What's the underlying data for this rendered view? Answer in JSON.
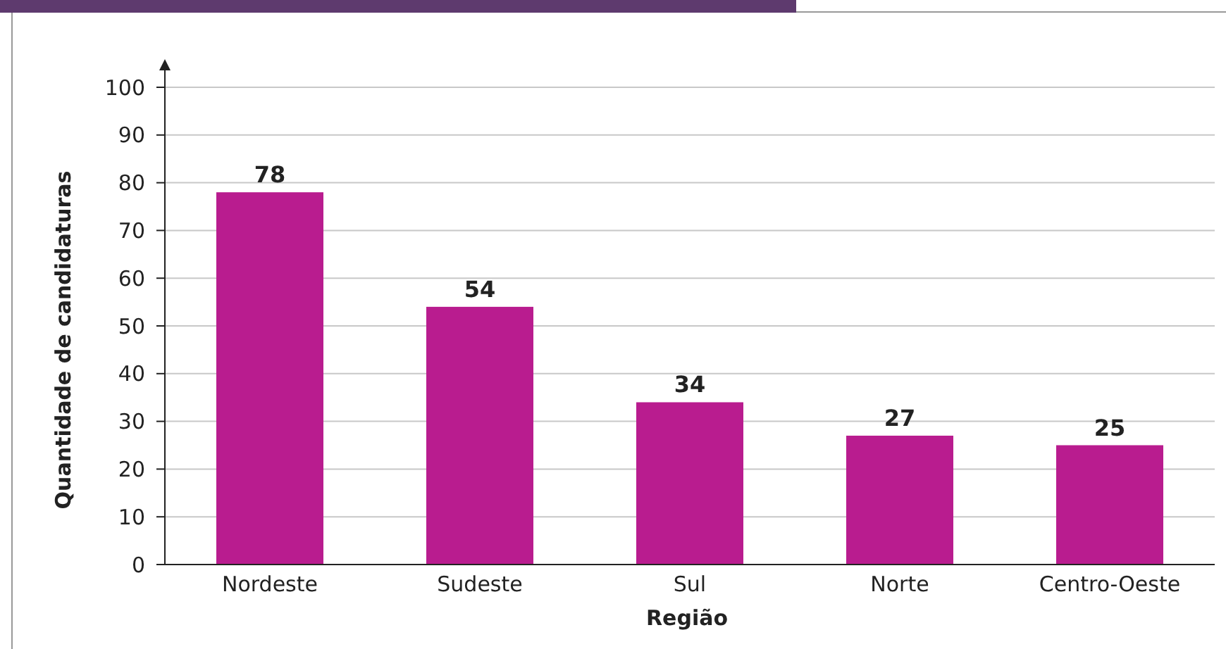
{
  "chart_data": {
    "type": "bar",
    "xlabel": "Região",
    "ylabel": "Quantidade de candidaturas",
    "categories": [
      "Nordeste",
      "Sudeste",
      "Sul",
      "Norte",
      "Centro-Oeste"
    ],
    "values": [
      78,
      54,
      34,
      27,
      25
    ],
    "color": "#b91c8f",
    "ylim": [
      0,
      100
    ],
    "yticks": [
      0,
      10,
      20,
      30,
      40,
      50,
      60,
      70,
      80,
      90,
      100
    ],
    "grid": "y",
    "data_labels": true
  }
}
